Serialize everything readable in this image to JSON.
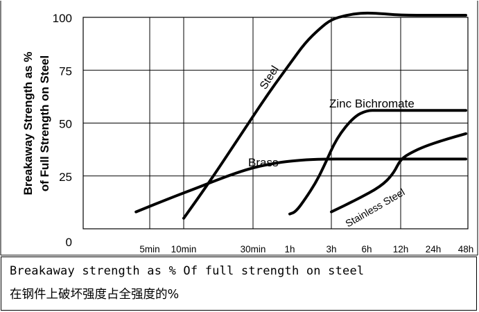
{
  "chart_data": {
    "type": "line",
    "xscale": "log",
    "x_unit": "minutes",
    "ylabel": [
      "Breakaway Strength as %",
      "of Full Strength on Steel"
    ],
    "ylim": [
      0,
      100
    ],
    "y_ticks": [
      0,
      25,
      50,
      75,
      100
    ],
    "x_ticks": [
      {
        "label": "5min",
        "value": 5
      },
      {
        "label": "10min",
        "value": 10
      },
      {
        "label": "30min",
        "value": 30
      },
      {
        "label": "1h",
        "value": 60
      },
      {
        "label": "3h",
        "value": 180
      },
      {
        "label": "6h",
        "value": 360
      },
      {
        "label": "12h",
        "value": 720
      },
      {
        "label": "24h",
        "value": 1440
      },
      {
        "label": "48h",
        "value": 2880
      }
    ],
    "grid": true,
    "series": [
      {
        "name": "Steel",
        "color": "#000000",
        "x": [
          10,
          15,
          25,
          40,
          60,
          90,
          135,
          180,
          240,
          320,
          420,
          720,
          1440,
          2880
        ],
        "y": [
          5,
          22,
          45,
          64,
          78,
          88,
          95,
          99,
          101,
          102,
          102,
          101,
          101,
          101
        ]
      },
      {
        "name": "Zinc Bichromate",
        "color": "#000000",
        "x": [
          60,
          70,
          90,
          120,
          150,
          200,
          280,
          360,
          450,
          720,
          1440,
          2880
        ],
        "y": [
          7,
          8,
          14,
          22,
          30,
          43,
          53,
          56,
          56,
          56,
          56,
          56
        ]
      },
      {
        "name": "Brass",
        "color": "#000000",
        "x": [
          4.5,
          8,
          12,
          20,
          30,
          45,
          60,
          120,
          300,
          720,
          1440,
          2880
        ],
        "y": [
          8,
          15,
          19,
          25,
          29,
          31,
          32,
          33,
          33,
          33,
          33,
          33
        ]
      },
      {
        "name": "Stainless Steel",
        "color": "#000000",
        "x": [
          180,
          300,
          480,
          620,
          720,
          900,
          1200,
          1800,
          2880
        ],
        "y": [
          8,
          14,
          20,
          26,
          33,
          36,
          39,
          42,
          45
        ]
      }
    ],
    "annotations": [
      "Steel",
      "Zinc Bichromate",
      "Brass",
      "Stainless Steel"
    ]
  },
  "caption": {
    "english": "Breakaway strength as  % Of full strength on steel",
    "chinese": "在钢件上破坏强度占全强度的%"
  }
}
